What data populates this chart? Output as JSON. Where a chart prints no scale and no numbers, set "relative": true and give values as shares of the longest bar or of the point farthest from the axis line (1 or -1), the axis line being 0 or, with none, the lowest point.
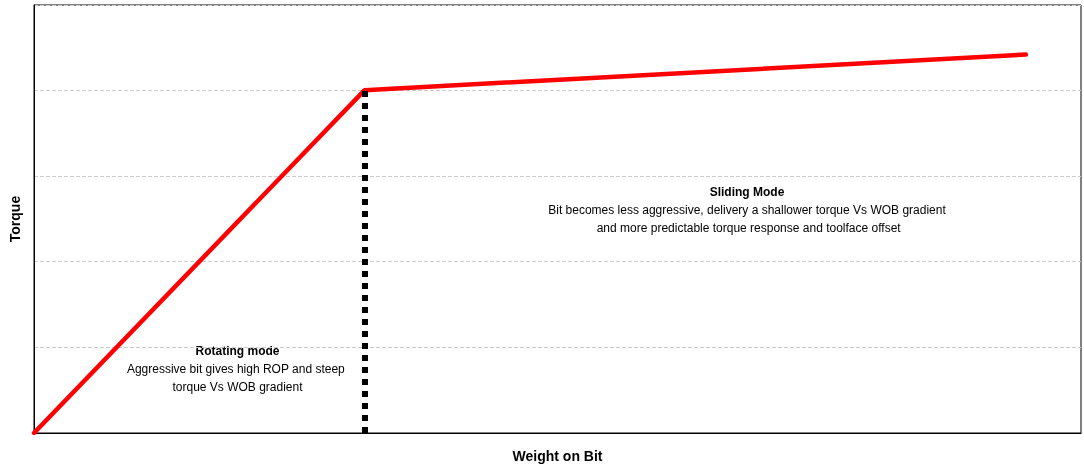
{
  "chart_data": {
    "type": "line",
    "xlabel": "Weight on Bit",
    "ylabel": "Torque",
    "relative": true,
    "grid": "y",
    "marker": "none",
    "line_style": "solid",
    "categories": [
      null,
      null,
      null,
      null,
      null,
      null,
      null,
      null,
      null,
      null,
      null,
      null,
      null,
      null,
      null,
      null,
      null,
      null,
      null,
      null
    ],
    "series": [
      {
        "color": "#ff0000",
        "values": [
          0,
          null,
          null,
          null,
          null,
          null,
          0.906,
          null,
          null,
          null,
          null,
          null,
          null,
          null,
          null,
          null,
          null,
          null,
          1,
          null
        ]
      }
    ],
    "ref_lines": [
      {
        "axis": "x",
        "color": "#000000",
        "line_style": "dotted"
      }
    ],
    "annotations": [
      "Rotating mode",
      "Aggressive bit gives high ROP and steep torque Vs WOB gradient",
      "Sliding Mode",
      "Bit becomes less aggressive, delivery a shallower torque Vs WOB gradient and more predictable torque response and toolface offset"
    ]
  }
}
